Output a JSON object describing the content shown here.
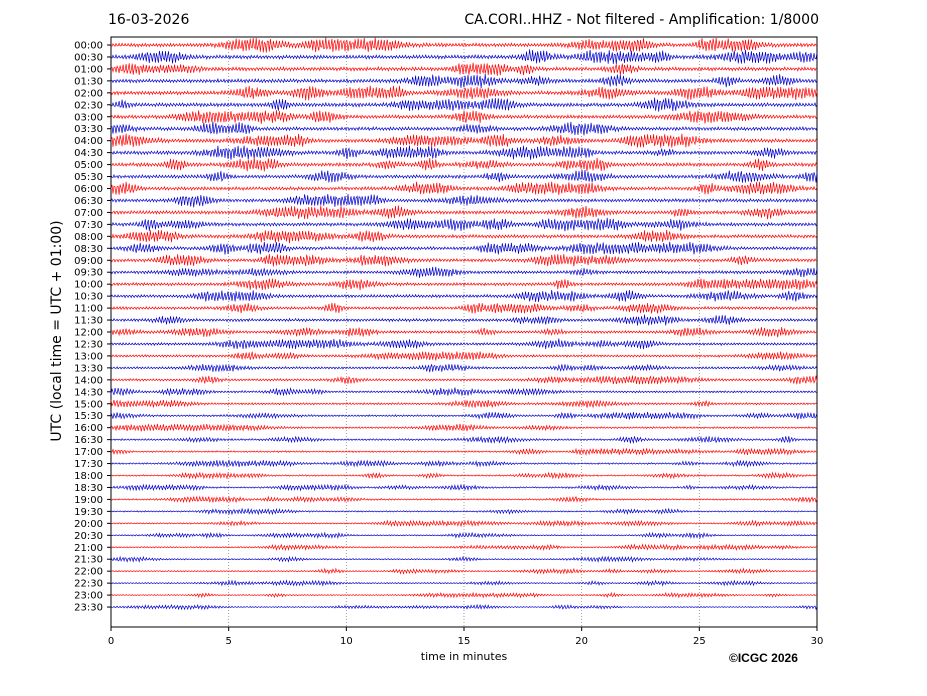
{
  "header": {
    "date": "16-03-2026",
    "station_title": "CA.CORI..HHZ - Not filtered - Amplification: 1/8000"
  },
  "footer": {
    "copyright": "©ICGC 2026"
  },
  "chart_data": {
    "type": "line",
    "title": "CA.CORI..HHZ - Not filtered - Amplification: 1/8000",
    "xlabel": "time in minutes",
    "ylabel": "UTC (local time = UTC + 01:00)",
    "xlim": [
      0,
      30
    ],
    "x_ticks": [
      "0",
      "5",
      "10",
      "15",
      "20",
      "25",
      "30"
    ],
    "grid": "vertical dotted lines at x ticks",
    "trace_colors": [
      "#ff0000",
      "#0000cc"
    ],
    "rows": [
      "00:00",
      "00:30",
      "01:00",
      "01:30",
      "02:00",
      "02:30",
      "03:00",
      "03:30",
      "04:00",
      "04:30",
      "05:00",
      "05:30",
      "06:00",
      "06:30",
      "07:00",
      "07:30",
      "08:00",
      "08:30",
      "09:00",
      "09:30",
      "10:00",
      "10:30",
      "11:00",
      "11:30",
      "12:00",
      "12:30",
      "13:00",
      "13:30",
      "14:00",
      "14:30",
      "15:00",
      "15:30",
      "16:00",
      "16:30",
      "17:00",
      "17:30",
      "18:00",
      "18:30",
      "19:00",
      "19:30",
      "20:00",
      "20:30",
      "21:00",
      "21:30",
      "22:00",
      "22:30",
      "23:00",
      "23:30"
    ],
    "relative_amplitude": [
      1.0,
      1.0,
      1.0,
      1.0,
      1.0,
      1.0,
      0.95,
      0.95,
      0.95,
      0.95,
      0.95,
      0.9,
      0.9,
      0.9,
      0.9,
      0.9,
      0.9,
      0.85,
      0.85,
      0.8,
      0.8,
      0.8,
      0.75,
      0.75,
      0.7,
      0.7,
      0.65,
      0.6,
      0.6,
      0.55,
      0.55,
      0.5,
      0.5,
      0.5,
      0.45,
      0.45,
      0.4,
      0.4,
      0.4,
      0.38,
      0.38,
      0.35,
      0.35,
      0.35,
      0.33,
      0.33,
      0.3,
      0.3
    ]
  }
}
